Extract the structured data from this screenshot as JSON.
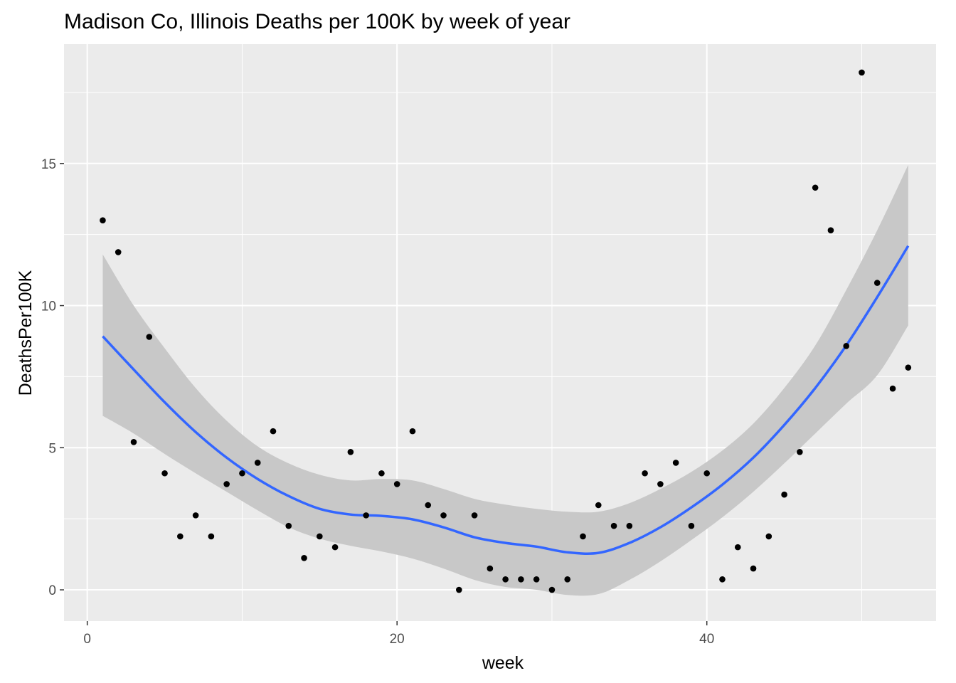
{
  "chart_data": {
    "type": "scatter",
    "title": "Madison Co, Illinois Deaths per 100K by week of year",
    "xlabel": "week",
    "ylabel": "DeathsPer100K",
    "xlim": [
      -1.5,
      54.8
    ],
    "ylim": [
      -1.1,
      19.2
    ],
    "x_ticks": [
      0,
      20,
      40
    ],
    "x_tick_labels": [
      "0",
      "20",
      "40"
    ],
    "y_ticks": [
      0,
      5,
      10,
      15
    ],
    "y_tick_labels": [
      "0",
      "5",
      "10",
      "15"
    ],
    "grid": true,
    "panel_background": "#ebebeb",
    "point_color": "#000000",
    "smooth_line_color": "#3366ff",
    "ribbon_color": "#c8c8c8",
    "points": [
      {
        "x": 1,
        "y": 13.0
      },
      {
        "x": 2,
        "y": 11.88
      },
      {
        "x": 3,
        "y": 5.2
      },
      {
        "x": 4,
        "y": 8.9
      },
      {
        "x": 5,
        "y": 4.1
      },
      {
        "x": 6,
        "y": 1.88
      },
      {
        "x": 7,
        "y": 2.62
      },
      {
        "x": 8,
        "y": 1.88
      },
      {
        "x": 9,
        "y": 3.72
      },
      {
        "x": 10,
        "y": 4.1
      },
      {
        "x": 11,
        "y": 4.47
      },
      {
        "x": 12,
        "y": 5.58
      },
      {
        "x": 13,
        "y": 2.25
      },
      {
        "x": 14,
        "y": 1.12
      },
      {
        "x": 15,
        "y": 1.88
      },
      {
        "x": 16,
        "y": 1.5
      },
      {
        "x": 17,
        "y": 4.85
      },
      {
        "x": 18,
        "y": 2.62
      },
      {
        "x": 19,
        "y": 4.1
      },
      {
        "x": 20,
        "y": 3.72
      },
      {
        "x": 21,
        "y": 5.58
      },
      {
        "x": 22,
        "y": 2.98
      },
      {
        "x": 23,
        "y": 2.62
      },
      {
        "x": 24,
        "y": 0.0
      },
      {
        "x": 25,
        "y": 2.62
      },
      {
        "x": 26,
        "y": 0.75
      },
      {
        "x": 27,
        "y": 0.37
      },
      {
        "x": 28,
        "y": 0.37
      },
      {
        "x": 29,
        "y": 0.37
      },
      {
        "x": 30,
        "y": 0.0
      },
      {
        "x": 31,
        "y": 0.37
      },
      {
        "x": 32,
        "y": 1.88
      },
      {
        "x": 33,
        "y": 2.98
      },
      {
        "x": 34,
        "y": 2.25
      },
      {
        "x": 35,
        "y": 2.25
      },
      {
        "x": 36,
        "y": 4.1
      },
      {
        "x": 37,
        "y": 3.72
      },
      {
        "x": 38,
        "y": 4.47
      },
      {
        "x": 39,
        "y": 2.25
      },
      {
        "x": 40,
        "y": 4.1
      },
      {
        "x": 41,
        "y": 0.37
      },
      {
        "x": 42,
        "y": 1.5
      },
      {
        "x": 43,
        "y": 0.75
      },
      {
        "x": 44,
        "y": 1.88
      },
      {
        "x": 45,
        "y": 3.35
      },
      {
        "x": 46,
        "y": 4.85
      },
      {
        "x": 47,
        "y": 14.15
      },
      {
        "x": 48,
        "y": 12.65
      },
      {
        "x": 49,
        "y": 8.58
      },
      {
        "x": 50,
        "y": 18.2
      },
      {
        "x": 51,
        "y": 10.8
      },
      {
        "x": 52,
        "y": 7.08
      },
      {
        "x": 53,
        "y": 7.82
      }
    ],
    "smooth": [
      {
        "x": 1,
        "y": 8.92,
        "lo": 6.12,
        "hi": 11.8
      },
      {
        "x": 3,
        "y": 7.75,
        "lo": 5.5,
        "hi": 10.0
      },
      {
        "x": 5,
        "y": 6.6,
        "lo": 4.78,
        "hi": 8.5
      },
      {
        "x": 7,
        "y": 5.55,
        "lo": 4.1,
        "hi": 7.1
      },
      {
        "x": 9,
        "y": 4.65,
        "lo": 3.45,
        "hi": 5.95
      },
      {
        "x": 11,
        "y": 3.9,
        "lo": 2.8,
        "hi": 5.05
      },
      {
        "x": 13,
        "y": 3.3,
        "lo": 2.2,
        "hi": 4.45
      },
      {
        "x": 15,
        "y": 2.85,
        "lo": 1.8,
        "hi": 4.05
      },
      {
        "x": 17,
        "y": 2.65,
        "lo": 1.55,
        "hi": 3.85
      },
      {
        "x": 19,
        "y": 2.6,
        "lo": 1.35,
        "hi": 3.9
      },
      {
        "x": 21,
        "y": 2.48,
        "lo": 1.1,
        "hi": 3.85
      },
      {
        "x": 23,
        "y": 2.2,
        "lo": 0.75,
        "hi": 3.55
      },
      {
        "x": 25,
        "y": 1.85,
        "lo": 0.35,
        "hi": 3.2
      },
      {
        "x": 27,
        "y": 1.65,
        "lo": 0.1,
        "hi": 3.0
      },
      {
        "x": 29,
        "y": 1.52,
        "lo": 0.0,
        "hi": 2.85
      },
      {
        "x": 31,
        "y": 1.32,
        "lo": -0.18,
        "hi": 2.75
      },
      {
        "x": 33,
        "y": 1.3,
        "lo": -0.15,
        "hi": 2.75
      },
      {
        "x": 35,
        "y": 1.65,
        "lo": 0.35,
        "hi": 3.05
      },
      {
        "x": 37,
        "y": 2.2,
        "lo": 1.0,
        "hi": 3.55
      },
      {
        "x": 39,
        "y": 2.9,
        "lo": 1.75,
        "hi": 4.15
      },
      {
        "x": 41,
        "y": 3.7,
        "lo": 2.55,
        "hi": 4.9
      },
      {
        "x": 43,
        "y": 4.65,
        "lo": 3.45,
        "hi": 5.85
      },
      {
        "x": 45,
        "y": 5.8,
        "lo": 4.45,
        "hi": 7.1
      },
      {
        "x": 47,
        "y": 7.1,
        "lo": 5.5,
        "hi": 8.6
      },
      {
        "x": 49,
        "y": 8.6,
        "lo": 6.55,
        "hi": 10.55
      },
      {
        "x": 51,
        "y": 10.3,
        "lo": 7.55,
        "hi": 12.65
      },
      {
        "x": 53,
        "y": 12.1,
        "lo": 9.3,
        "hi": 14.95
      }
    ]
  }
}
